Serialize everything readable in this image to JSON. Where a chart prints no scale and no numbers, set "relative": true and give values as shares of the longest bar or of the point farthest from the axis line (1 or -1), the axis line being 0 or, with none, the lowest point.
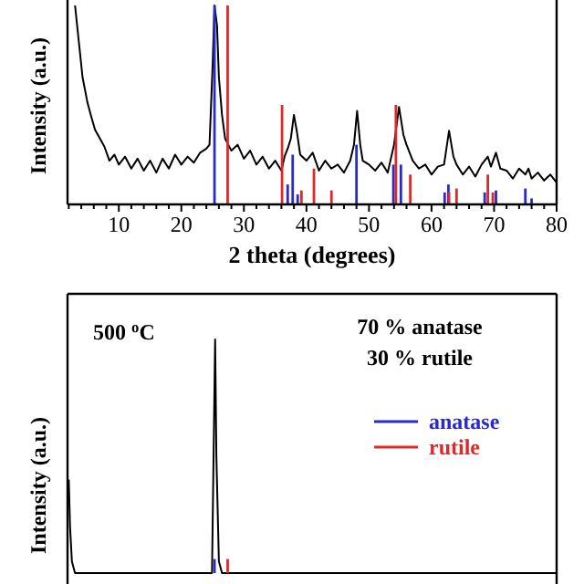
{
  "chart_data": [
    {
      "type": "line",
      "xlabel": "2 theta (degrees)",
      "ylabel": "Intensity (a.u.)",
      "relative": true,
      "xlim": [
        1.8,
        80
      ],
      "xticks": [
        {
          "value": 2,
          "label": null
        },
        {
          "value": 4,
          "label": null
        },
        {
          "value": 6,
          "label": null
        },
        {
          "value": 8,
          "label": null
        },
        10,
        {
          "value": 12,
          "label": null
        },
        {
          "value": 14,
          "label": null
        },
        {
          "value": 16,
          "label": null
        },
        {
          "value": 18,
          "label": null
        },
        20,
        {
          "value": 22,
          "label": null
        },
        {
          "value": 24,
          "label": null
        },
        {
          "value": 26,
          "label": null
        },
        {
          "value": 28,
          "label": null
        },
        30,
        {
          "value": 32,
          "label": null
        },
        {
          "value": 34,
          "label": null
        },
        {
          "value": 36,
          "label": null
        },
        {
          "value": 38,
          "label": null
        },
        40,
        {
          "value": 42,
          "label": null
        },
        {
          "value": 44,
          "label": null
        },
        {
          "value": 46,
          "label": null
        },
        {
          "value": 48,
          "label": null
        },
        50,
        {
          "value": 52,
          "label": null
        },
        {
          "value": 54,
          "label": null
        },
        {
          "value": 56,
          "label": null
        },
        {
          "value": 58,
          "label": null
        },
        60,
        {
          "value": 62,
          "label": null
        },
        {
          "value": 64,
          "label": null
        },
        {
          "value": 66,
          "label": null
        },
        {
          "value": 68,
          "label": null
        },
        70,
        {
          "value": 72,
          "label": null
        },
        {
          "value": 74,
          "label": null
        },
        {
          "value": 76,
          "label": null
        },
        {
          "value": 78,
          "label": null
        },
        80
      ],
      "tick_labels": "x",
      "grid": false,
      "legend": false,
      "series": [
        {
          "color": "#000000",
          "x": [
            3.0,
            3.6,
            4.2,
            5.0,
            5.6,
            6.2,
            7.0,
            7.7,
            8.5,
            9.3,
            10,
            11,
            12,
            13,
            14,
            15,
            16,
            17,
            18,
            19,
            20,
            21,
            22,
            23,
            24,
            24.5,
            25,
            25.3,
            25.7,
            26,
            26.5,
            27,
            27.5,
            28,
            29,
            30,
            31,
            32,
            33,
            34,
            35,
            36,
            36.5,
            37,
            37.5,
            38,
            38.5,
            39,
            40,
            41,
            42,
            43,
            44,
            45,
            46,
            47,
            47.6,
            48.1,
            48.6,
            49,
            50,
            51,
            52,
            53,
            54,
            54.8,
            55.5,
            56,
            57,
            58,
            59,
            60,
            61,
            62,
            62.8,
            63.5,
            64,
            65,
            66,
            67,
            68,
            69,
            69.5,
            70.3,
            71,
            72,
            73,
            74,
            75,
            75.5,
            76,
            77,
            78,
            79,
            80
          ],
          "values": [
            1.0,
            0.82,
            0.64,
            0.51,
            0.44,
            0.375,
            0.33,
            0.29,
            0.22,
            0.25,
            0.2,
            0.24,
            0.18,
            0.23,
            0.17,
            0.22,
            0.16,
            0.23,
            0.18,
            0.25,
            0.2,
            0.24,
            0.21,
            0.26,
            0.28,
            0.3,
            0.7,
            1.0,
            0.9,
            0.64,
            0.45,
            0.33,
            0.3,
            0.27,
            0.3,
            0.23,
            0.27,
            0.2,
            0.24,
            0.18,
            0.22,
            0.17,
            0.24,
            0.28,
            0.33,
            0.45,
            0.36,
            0.25,
            0.22,
            0.26,
            0.17,
            0.22,
            0.18,
            0.2,
            0.16,
            0.22,
            0.3,
            0.47,
            0.3,
            0.22,
            0.2,
            0.17,
            0.21,
            0.16,
            0.3,
            0.49,
            0.35,
            0.3,
            0.22,
            0.18,
            0.2,
            0.15,
            0.19,
            0.2,
            0.37,
            0.24,
            0.2,
            0.15,
            0.19,
            0.14,
            0.2,
            0.24,
            0.19,
            0.26,
            0.18,
            0.17,
            0.13,
            0.18,
            0.15,
            0.18,
            0.13,
            0.16,
            0.12,
            0.15,
            0.11
          ]
        },
        {
          "type": "bar",
          "color": "#2a2ac8",
          "x": [
            25.3,
            37.0,
            37.8,
            38.6,
            48.0,
            53.9,
            55.1,
            62.1,
            62.7,
            68.5,
            70.3,
            75.0,
            76.0
          ],
          "values": [
            1.0,
            0.1,
            0.25,
            0.05,
            0.3,
            0.2,
            0.2,
            0.06,
            0.1,
            0.06,
            0.07,
            0.08,
            0.03
          ]
        },
        {
          "type": "bar",
          "color": "#e02828",
          "x": [
            27.4,
            36.1,
            39.2,
            41.2,
            44.0,
            54.3,
            56.6,
            62.8,
            64.0,
            69.0,
            69.8
          ],
          "values": [
            1.0,
            0.5,
            0.07,
            0.18,
            0.07,
            0.5,
            0.15,
            0.06,
            0.08,
            0.15,
            0.06
          ]
        }
      ]
    },
    {
      "type": "line",
      "ylabel": "Intensity (a.u.)",
      "relative": true,
      "xlim": [
        1.8,
        80
      ],
      "tick_labels": false,
      "grid": false,
      "legend": "top right",
      "annotations": [
        "500 $^{o}$C",
        "70 % anatase",
        "30 % rutile"
      ],
      "series": [
        {
          "color": "#000000",
          "x": [
            2.0,
            2.2,
            2.5,
            3.0,
            24.9,
            25.2,
            25.4,
            25.6,
            26.0,
            26.5,
            80
          ],
          "values": [
            0.4,
            0.2,
            0.05,
            0,
            0,
            0.6,
            1.0,
            0.5,
            0.05,
            0,
            0
          ]
        },
        {
          "type": "bar",
          "name": "anatase",
          "color": "#2a2ac8",
          "x": [
            25.3
          ],
          "values": [
            0.06
          ]
        },
        {
          "type": "bar",
          "name": "rutile",
          "color": "#e02828",
          "x": [
            27.4
          ],
          "values": [
            0.06
          ]
        }
      ]
    }
  ]
}
